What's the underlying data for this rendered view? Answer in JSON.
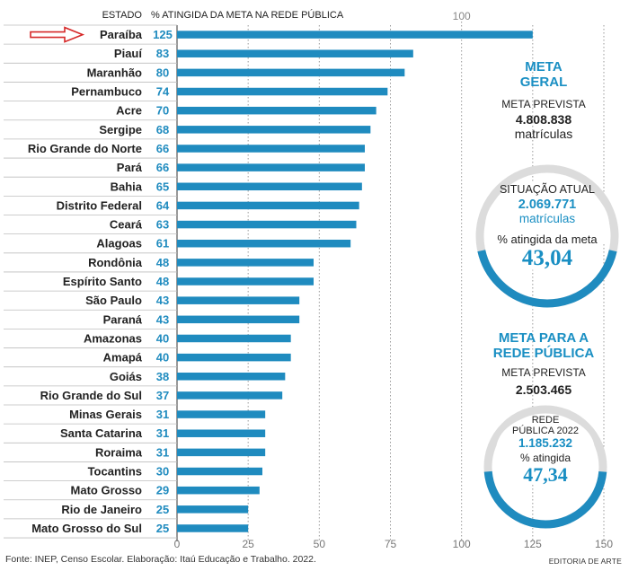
{
  "chart_data": {
    "type": "bar",
    "orientation": "horizontal",
    "category_header": "ESTADO",
    "value_header": "% ATINGIDA DA META NA REDE PÚBLICA",
    "reference_line": {
      "value": 100,
      "label": "100"
    },
    "xlim": [
      0,
      150
    ],
    "xticks": [
      "0",
      "25",
      "50",
      "75",
      "100",
      "125",
      "150"
    ],
    "highlight": "Paraíba",
    "colors": {
      "bar": "#1f8bbf",
      "value": "#1f8bbf",
      "accent": "#d62828"
    },
    "categories": [
      "Paraíba",
      "Piauí",
      "Maranhão",
      "Pernambuco",
      "Acre",
      "Sergipe",
      "Rio Grande do Norte",
      "Pará",
      "Bahia",
      "Distrito Federal",
      "Ceará",
      "Alagoas",
      "Rondônia",
      "Espírito Santo",
      "São Paulo",
      "Paraná",
      "Amazonas",
      "Amapá",
      "Goiás",
      "Rio Grande do Sul",
      "Minas Gerais",
      "Santa Catarina",
      "Roraima",
      "Tocantins",
      "Mato Grosso",
      "Rio de Janeiro",
      "Mato Grosso do Sul"
    ],
    "values": [
      125,
      83,
      80,
      74,
      70,
      68,
      66,
      66,
      65,
      64,
      63,
      61,
      48,
      48,
      43,
      43,
      40,
      40,
      38,
      37,
      31,
      31,
      31,
      30,
      29,
      25,
      25
    ]
  },
  "meta_geral": {
    "title_line1": "META",
    "title_line2": "GERAL",
    "prevista_label": "META PREVISTA",
    "prevista_value": "4.808.838",
    "prevista_unit": "matrículas",
    "situacao_label": "SITUAÇÃO ATUAL",
    "situacao_value": "2.069.771",
    "situacao_unit": "matrículas",
    "pct_label": "% atingida da meta",
    "pct_value": "43,04",
    "pct_fraction": 0.4304
  },
  "meta_publica": {
    "title_line1": "META PARA A",
    "title_line2": "REDE PÚBLICA",
    "prevista_label": "META PREVISTA",
    "prevista_value": "2.503.465",
    "rede_label_1": "REDE",
    "rede_label_2": "PÚBLICA 2022",
    "rede_value": "1.185.232",
    "pct_label": "% atingida",
    "pct_value": "47,34",
    "pct_fraction": 0.4734
  },
  "footer": {
    "source": "Fonte: INEP, Censo Escolar. Elaboração: Itaú Educação e Trabalho. 2022.",
    "credit": "EDITORIA DE ARTE"
  }
}
